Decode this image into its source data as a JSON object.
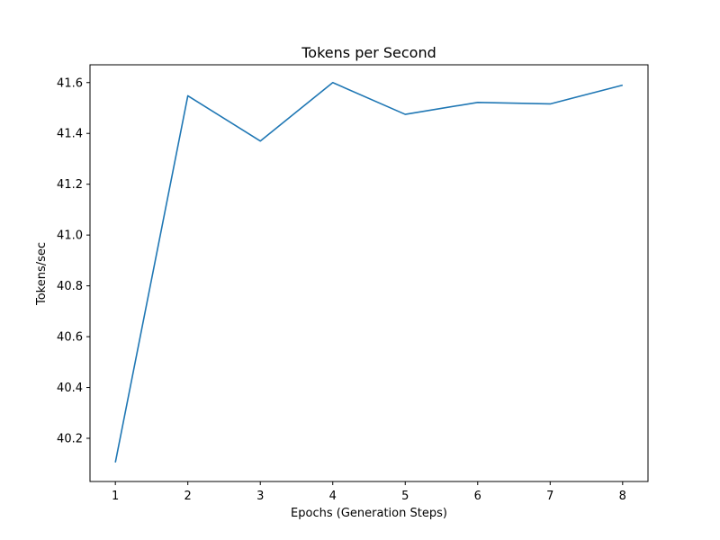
{
  "chart_data": {
    "type": "line",
    "title": "Tokens per Second",
    "xlabel": "Epochs (Generation Steps)",
    "ylabel": "Tokens/sec",
    "x": [
      1,
      2,
      3,
      4,
      5,
      6,
      7,
      8
    ],
    "series": [
      {
        "values": [
          40.105,
          41.548,
          41.37,
          41.6,
          41.475,
          41.522,
          41.516,
          41.59
        ],
        "color": "#1f77b4"
      }
    ],
    "xlim": [
      0.65,
      8.35
    ],
    "ylim": [
      40.03,
      41.67
    ],
    "xticks": [
      1,
      2,
      3,
      4,
      5,
      6,
      7,
      8
    ],
    "yticks": [
      40.2,
      40.4,
      40.6,
      40.8,
      41.0,
      41.2,
      41.4,
      41.6
    ],
    "ytick_labels": [
      "40.2",
      "40.4",
      "40.6",
      "40.8",
      "41.0",
      "41.2",
      "41.4",
      "41.6"
    ],
    "grid": false,
    "legend": "none"
  }
}
